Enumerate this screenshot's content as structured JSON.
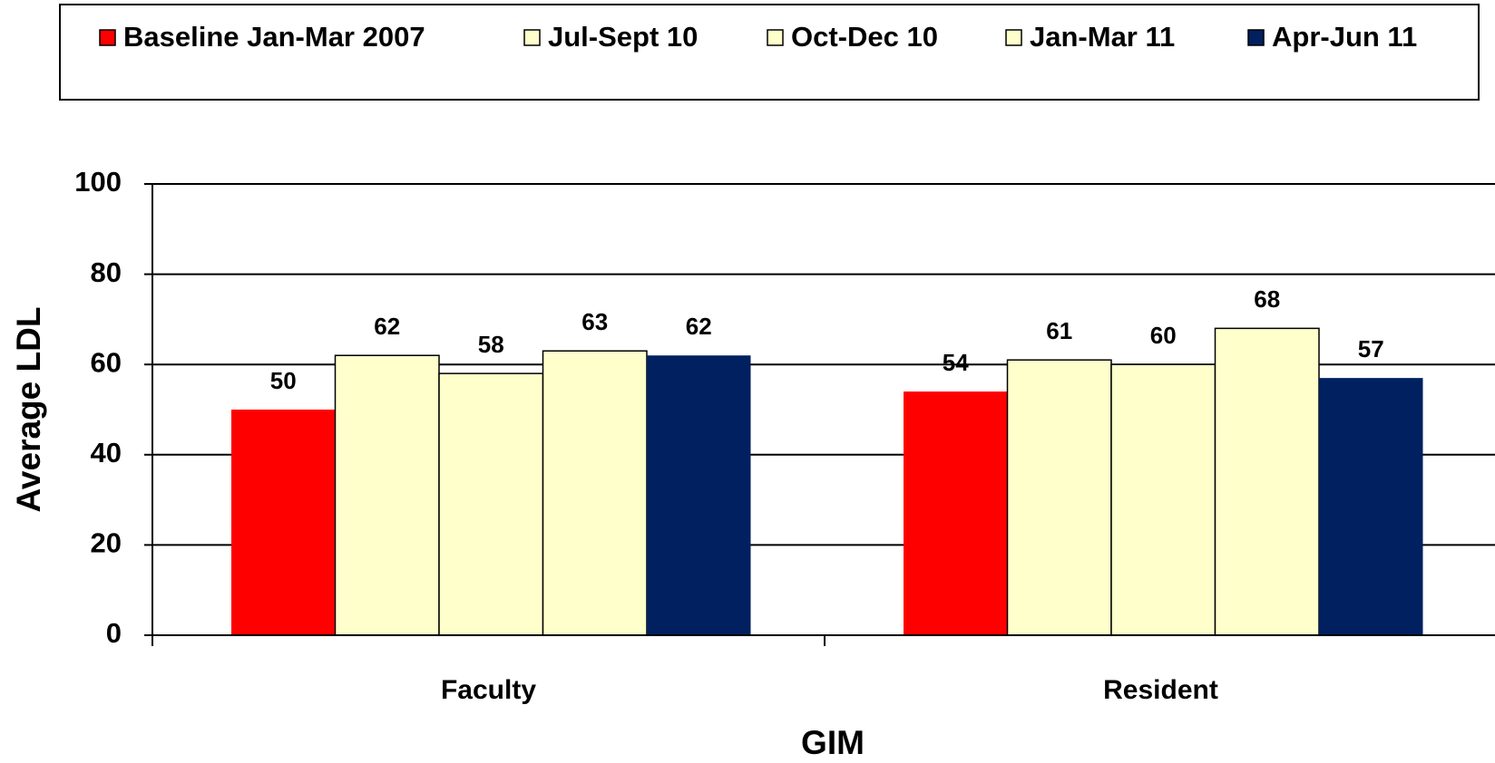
{
  "chart_data": {
    "type": "bar",
    "xlabel": "GIM",
    "ylabel": "Average LDL",
    "categories": [
      "Faculty",
      "Resident"
    ],
    "series": [
      {
        "name": "Baseline Jan-Mar 2007",
        "color": "#ff0000",
        "values": [
          50,
          54
        ]
      },
      {
        "name": "Jul-Sept 10",
        "color": "#ffffcc",
        "values": [
          62,
          61
        ]
      },
      {
        "name": "Oct-Dec 10",
        "color": "#ffffcc",
        "values": [
          58,
          60
        ]
      },
      {
        "name": "Jan-Mar 11",
        "color": "#ffffcc",
        "values": [
          63,
          68
        ]
      },
      {
        "name": "Apr-Jun 11",
        "color": "#002060",
        "values": [
          62,
          57
        ]
      }
    ],
    "ylim": [
      0,
      100
    ],
    "yticks": [
      0,
      20,
      40,
      60,
      80,
      100
    ],
    "grid": true,
    "legend": "top"
  }
}
